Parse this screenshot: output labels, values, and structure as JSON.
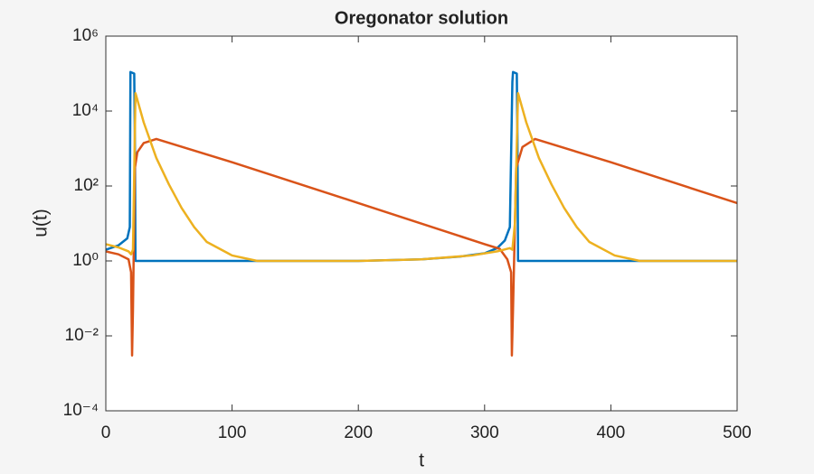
{
  "chart_data": {
    "type": "line",
    "title": "Oregonator solution",
    "x_label": "t",
    "y_label": "u(t)",
    "yscale": "log",
    "xlim": [
      0,
      500
    ],
    "ylim": [
      0.0001,
      1000000
    ],
    "xticks": [
      0,
      100,
      200,
      300,
      400,
      500
    ],
    "yticks": [
      {
        "value": 0.0001,
        "label": "10⁻⁴"
      },
      {
        "value": 0.01,
        "label": "10⁻²"
      },
      {
        "value": 1,
        "label": "10⁰"
      },
      {
        "value": 100,
        "label": "10²"
      },
      {
        "value": 10000,
        "label": "10⁴"
      },
      {
        "value": 1000000,
        "label": "10⁶"
      }
    ],
    "grid": false,
    "series": [
      {
        "color": "#0072BD",
        "x": [
          0,
          10,
          17,
          19,
          19.5,
          22.5,
          23,
          23.5,
          100,
          200,
          250,
          280,
          300,
          310,
          316,
          320,
          322,
          322.5,
          325.5,
          326,
          326.5,
          400,
          500
        ],
        "values": [
          2,
          2.6,
          4,
          8,
          110000,
          100000,
          2000,
          1,
          1,
          1,
          1.1,
          1.3,
          1.6,
          2.2,
          3.5,
          8,
          60000,
          110000,
          100000,
          2000,
          1,
          1,
          1
        ]
      },
      {
        "color": "#D95319",
        "x": [
          0,
          10,
          18,
          20,
          20.8,
          21.5,
          23,
          25,
          30,
          40,
          100,
          200,
          300,
          312,
          318,
          321,
          321.6,
          322.5,
          325,
          330,
          340,
          400,
          500
        ],
        "values": [
          1.8,
          1.5,
          1.1,
          0.5,
          0.003,
          0.05,
          300,
          800,
          1400,
          1800,
          430,
          35,
          2.8,
          2.1,
          1.1,
          0.5,
          0.003,
          0.05,
          300,
          1100,
          1800,
          430,
          35
        ]
      },
      {
        "color": "#EDB120",
        "x": [
          0,
          10,
          18,
          20,
          21.5,
          23.5,
          30,
          40,
          50,
          60,
          70,
          80,
          100,
          120,
          200,
          250,
          290,
          310,
          320,
          322,
          324,
          326.5,
          333,
          343,
          353,
          363,
          373,
          383,
          403,
          423,
          500
        ],
        "values": [
          2.8,
          2.3,
          1.8,
          1.5,
          2,
          30000,
          5000,
          560,
          110,
          26,
          8,
          3.2,
          1.4,
          1,
          1,
          1.1,
          1.4,
          1.8,
          2.2,
          2,
          10,
          30000,
          5000,
          560,
          110,
          26,
          8,
          3.2,
          1.4,
          1,
          1
        ]
      }
    ]
  }
}
